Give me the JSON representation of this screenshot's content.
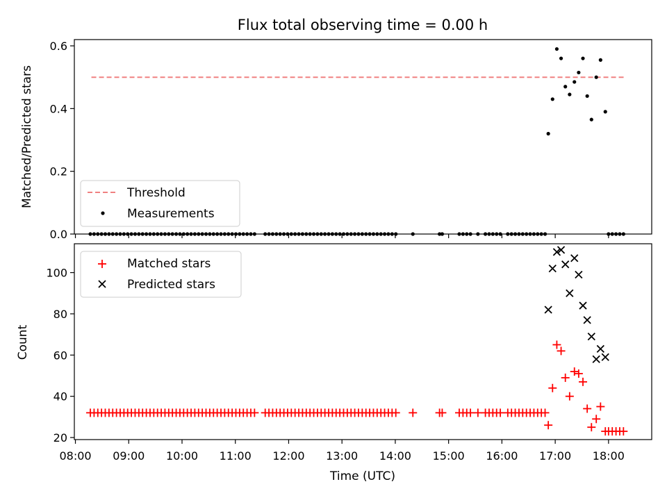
{
  "chart_data": [
    {
      "type": "scatter",
      "title": "Flux total observing time = 0.00 h",
      "xlabel": "",
      "ylabel": "Matched/Predicted stars",
      "ylim": [
        0.0,
        0.62
      ],
      "yticks": [
        0.0,
        0.2,
        0.4,
        0.6
      ],
      "ytick_labels": [
        "0.0",
        "0.2",
        "0.4",
        "0.6"
      ],
      "xlim": [
        7.98,
        18.81
      ],
      "grid": false,
      "legend_placement": "lower-left",
      "threshold": {
        "name": "Threshold",
        "value": 0.5,
        "x": [
          8.3,
          18.3
        ],
        "color": "#f08080",
        "style": "dashed"
      },
      "measurements": {
        "name": "Measurements",
        "color": "#000000",
        "zero_x": [
          8.28,
          8.35,
          8.42,
          8.49,
          8.56,
          8.63,
          8.7,
          8.77,
          8.84,
          8.91,
          8.98,
          9.05,
          9.12,
          9.19,
          9.26,
          9.33,
          9.4,
          9.47,
          9.54,
          9.61,
          9.68,
          9.75,
          9.82,
          9.89,
          9.96,
          10.03,
          10.1,
          10.17,
          10.24,
          10.31,
          10.38,
          10.45,
          10.52,
          10.59,
          10.66,
          10.73,
          10.8,
          10.87,
          10.94,
          11.01,
          11.08,
          11.15,
          11.22,
          11.29,
          11.36,
          11.56,
          11.63,
          11.7,
          11.77,
          11.84,
          11.91,
          11.98,
          12.05,
          12.12,
          12.19,
          12.26,
          12.33,
          12.4,
          12.47,
          12.54,
          12.61,
          12.68,
          12.75,
          12.82,
          12.89,
          12.96,
          13.03,
          13.1,
          13.17,
          13.24,
          13.31,
          13.38,
          13.45,
          13.52,
          13.59,
          13.66,
          13.73,
          13.8,
          13.87,
          13.94,
          14.01,
          14.33,
          14.83,
          14.88,
          15.2,
          15.27,
          15.34,
          15.41,
          15.55,
          15.69,
          15.76,
          15.83,
          15.9,
          15.97,
          16.11,
          16.18,
          16.25,
          16.32,
          16.39,
          16.46,
          16.53,
          16.6,
          16.67,
          16.74,
          16.81,
          18.0,
          18.07,
          18.14,
          18.21,
          18.28
        ],
        "points": [
          [
            16.87,
            0.32
          ],
          [
            16.95,
            0.43
          ],
          [
            17.03,
            0.59
          ],
          [
            17.11,
            0.56
          ],
          [
            17.19,
            0.47
          ],
          [
            17.27,
            0.445
          ],
          [
            17.36,
            0.485
          ],
          [
            17.44,
            0.515
          ],
          [
            17.52,
            0.56
          ],
          [
            17.6,
            0.44
          ],
          [
            17.68,
            0.365
          ],
          [
            17.77,
            0.5
          ],
          [
            17.85,
            0.555
          ],
          [
            17.94,
            0.39
          ]
        ]
      }
    },
    {
      "type": "scatter",
      "title": "",
      "xlabel": "Time (UTC)",
      "ylabel": "Count",
      "ylim": [
        19,
        114
      ],
      "yticks": [
        20,
        40,
        60,
        80,
        100
      ],
      "ytick_labels": [
        "20",
        "40",
        "60",
        "80",
        "100"
      ],
      "xlim": [
        7.98,
        18.81
      ],
      "xticks": [
        8,
        9,
        10,
        11,
        12,
        13,
        14,
        15,
        16,
        17,
        18
      ],
      "xtick_labels": [
        "08:00",
        "09:00",
        "10:00",
        "11:00",
        "12:00",
        "13:00",
        "14:00",
        "15:00",
        "16:00",
        "17:00",
        "18:00"
      ],
      "grid": false,
      "legend_placement": "upper-left",
      "matched": {
        "name": "Matched stars",
        "color": "#ff0000",
        "marker": "plus",
        "baseline_value": 32,
        "baseline_x": [
          8.28,
          8.35,
          8.42,
          8.49,
          8.56,
          8.63,
          8.7,
          8.77,
          8.84,
          8.91,
          8.98,
          9.05,
          9.12,
          9.19,
          9.26,
          9.33,
          9.4,
          9.47,
          9.54,
          9.61,
          9.68,
          9.75,
          9.82,
          9.89,
          9.96,
          10.03,
          10.1,
          10.17,
          10.24,
          10.31,
          10.38,
          10.45,
          10.52,
          10.59,
          10.66,
          10.73,
          10.8,
          10.87,
          10.94,
          11.01,
          11.08,
          11.15,
          11.22,
          11.29,
          11.36,
          11.56,
          11.63,
          11.7,
          11.77,
          11.84,
          11.91,
          11.98,
          12.05,
          12.12,
          12.19,
          12.26,
          12.33,
          12.4,
          12.47,
          12.54,
          12.61,
          12.68,
          12.75,
          12.82,
          12.89,
          12.96,
          13.03,
          13.1,
          13.17,
          13.24,
          13.31,
          13.38,
          13.45,
          13.52,
          13.59,
          13.66,
          13.73,
          13.8,
          13.87,
          13.94,
          14.01,
          14.33,
          14.83,
          14.88,
          15.2,
          15.27,
          15.34,
          15.41,
          15.55,
          15.69,
          15.76,
          15.83,
          15.9,
          15.97,
          16.11,
          16.18,
          16.25,
          16.32,
          16.39,
          16.46,
          16.53,
          16.6,
          16.67,
          16.74,
          16.81
        ],
        "points": [
          [
            16.87,
            26
          ],
          [
            16.95,
            44
          ],
          [
            17.03,
            65
          ],
          [
            17.11,
            62
          ],
          [
            17.19,
            49
          ],
          [
            17.27,
            40
          ],
          [
            17.36,
            52
          ],
          [
            17.44,
            51
          ],
          [
            17.52,
            47
          ],
          [
            17.6,
            34
          ],
          [
            17.68,
            25
          ],
          [
            17.77,
            29
          ],
          [
            17.85,
            35
          ],
          [
            17.94,
            23
          ],
          [
            18.0,
            23
          ],
          [
            18.07,
            23
          ],
          [
            18.14,
            23
          ],
          [
            18.21,
            23
          ],
          [
            18.28,
            23
          ]
        ]
      },
      "predicted": {
        "name": "Predicted stars",
        "color": "#000000",
        "marker": "x",
        "points": [
          [
            16.87,
            82
          ],
          [
            16.95,
            102
          ],
          [
            17.03,
            110
          ],
          [
            17.11,
            111
          ],
          [
            17.19,
            104
          ],
          [
            17.27,
            90
          ],
          [
            17.36,
            107
          ],
          [
            17.44,
            99
          ],
          [
            17.52,
            84
          ],
          [
            17.6,
            77
          ],
          [
            17.68,
            69
          ],
          [
            17.77,
            58
          ],
          [
            17.85,
            63
          ],
          [
            17.94,
            59
          ]
        ]
      }
    }
  ]
}
